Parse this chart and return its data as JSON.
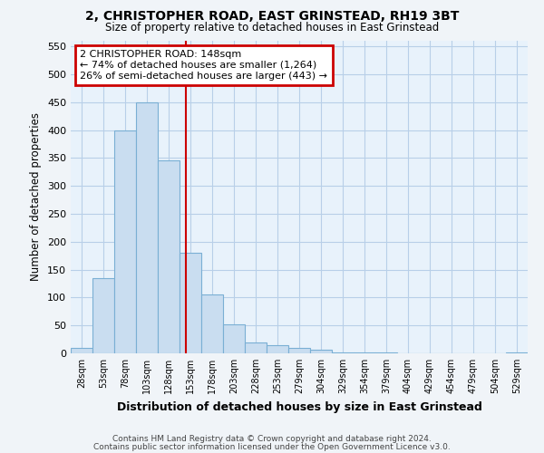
{
  "title": "2, CHRISTOPHER ROAD, EAST GRINSTEAD, RH19 3BT",
  "subtitle": "Size of property relative to detached houses in East Grinstead",
  "xlabel": "Distribution of detached houses by size in East Grinstead",
  "ylabel": "Number of detached properties",
  "footnote1": "Contains HM Land Registry data © Crown copyright and database right 2024.",
  "footnote2": "Contains public sector information licensed under the Open Government Licence v3.0.",
  "bar_labels": [
    "28sqm",
    "53sqm",
    "78sqm",
    "103sqm",
    "128sqm",
    "153sqm",
    "178sqm",
    "203sqm",
    "228sqm",
    "253sqm",
    "279sqm",
    "304sqm",
    "329sqm",
    "354sqm",
    "379sqm",
    "404sqm",
    "429sqm",
    "454sqm",
    "479sqm",
    "504sqm",
    "529sqm"
  ],
  "bar_values": [
    10,
    135,
    400,
    450,
    345,
    180,
    105,
    52,
    20,
    14,
    10,
    7,
    2,
    2,
    1,
    0,
    0,
    0,
    0,
    0,
    2
  ],
  "bar_color": "#c9ddf0",
  "bar_edge_color": "#7aafd4",
  "grid_color": "#b8cfe8",
  "bg_color": "#e8f2fb",
  "property_line_x": 4.8,
  "annotation_text1": "2 CHRISTOPHER ROAD: 148sqm",
  "annotation_text2": "← 74% of detached houses are smaller (1,264)",
  "annotation_text3": "26% of semi-detached houses are larger (443) →",
  "annotation_box_color": "#ffffff",
  "annotation_box_edge": "#cc0000",
  "vline_color": "#cc0000",
  "ylim": [
    0,
    560
  ],
  "yticks": [
    0,
    50,
    100,
    150,
    200,
    250,
    300,
    350,
    400,
    450,
    500,
    550
  ]
}
